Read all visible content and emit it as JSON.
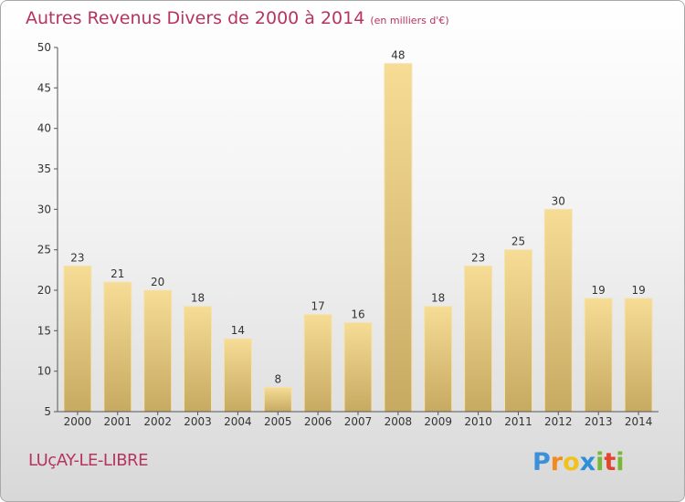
{
  "title": {
    "main": "Autres Revenus Divers de 2000 à 2014",
    "sub": "(en milliers d'€)"
  },
  "place": "LUçAY-LE-LIBRE",
  "logo": {
    "text": "Proxiti",
    "letters": [
      "P",
      "r",
      "o",
      "x",
      "i",
      "t",
      "i"
    ],
    "colors": [
      "#3c8fd9",
      "#f28a1c",
      "#f2c21c",
      "#2e8fd9",
      "#79b837",
      "#e2452f",
      "#79b837"
    ]
  },
  "chart_data": {
    "type": "bar",
    "title": "Autres Revenus Divers de 2000 à 2014",
    "subtitle": "(en milliers d'€)",
    "categories": [
      "2000",
      "2001",
      "2002",
      "2003",
      "2004",
      "2005",
      "2006",
      "2007",
      "2008",
      "2009",
      "2010",
      "2011",
      "2012",
      "2013",
      "2014"
    ],
    "values": [
      23,
      21,
      20,
      18,
      14,
      8,
      17,
      16,
      48,
      18,
      23,
      25,
      30,
      19,
      19
    ],
    "yticks": [
      5,
      10,
      15,
      20,
      25,
      30,
      35,
      40,
      45,
      50
    ],
    "ylim": [
      5,
      50
    ],
    "xlabel": "",
    "ylabel": "",
    "grid": false,
    "legend": "none",
    "bar_color": "#e9c97a"
  }
}
